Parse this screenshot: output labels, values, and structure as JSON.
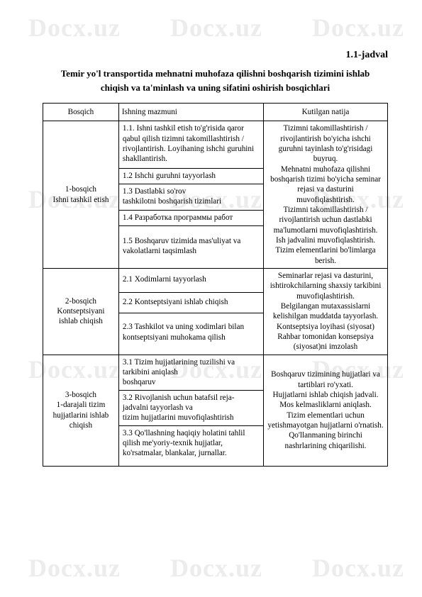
{
  "watermark": "Docx.uz",
  "subtitle": "1.1-jadval",
  "title_line1": "Temir yo'l transportida mehnatni muhofaza qilishni boshqarish tizimini ishlab",
  "title_line2": "chiqish va ta'minlash va uning sifatini oshirish bosqichlari",
  "headers": {
    "c1": "Bosqich",
    "c2": "Ishning mazmuni",
    "c3": "Kutilgan natija"
  },
  "stage1": {
    "name": "1-bosqich\nIshni tashkil etish",
    "r1": "1.1. Ishni tashkil etish to'g'risida qaror qabul qilish tizimni takomillashtirish / rivojlantirish. Loyihaning ishchi guruhini shakllantirish.",
    "r2": "1.2 Ishchi guruhni tayyorlash",
    "r3": "1.3 Dastlabki so'rov\ntashkilotni boshqarish tizimlari",
    "r4": "1.4 Разработка программы работ",
    "r5": "1.5 Boshqaruv tizimida mas'uliyat va vakolatlarni taqsimlash",
    "result": "Tizimni takomillashtirish / rivojlantirish bo'yicha ishchi guruhni tayinlash to'g'risidagi buyruq.\nMehnatni muhofaza qilishni boshqarish tizimi bo'yicha seminar rejasi va dasturini muvofiqlashtirish.\nTizimni takomillashtirish / rivojlantirish uchun dastlabki ma'lumotlarni muvofiqlashtirish.\nIsh jadvalini muvofiqlashtirish. Tizim elementlarini bo'limlarga berish."
  },
  "stage2": {
    "name": "2-bosqich\nKontseptsiyani ishlab chiqish",
    "r1": "2.1 Xodimlarni tayyorlash",
    "r2": "2.2 Kontseptsiyani ishlab chiqish",
    "r3": "2.3 Tashkilot va uning xodimlari bilan kontseptsiyani muhokama qilish",
    "result": "Seminarlar rejasi va dasturini, ishtirokchilarning shaxsiy tarkibini muvofiqlashtirish.\nBelgilangan mutaxassislarni kelishilgan muddatda tayyorlash.\nKontseptsiya loyihasi (siyosat) Rahbar tomonidan konsepsiya (siyosat)ni imzolash"
  },
  "stage3": {
    "name": "3-bosqich\n1-darajali tizim hujjatlarini ishlab chiqish",
    "r1": "3.1 Tizim hujjatlarining tuzilishi va tarkibini aniqlash\nboshqaruv",
    "r2": "3.2 Rivojlanish uchun batafsil reja-jadvalni tayyorlash va\ntizim hujjatlarini muvofiqlashtirish",
    "r3": "3.3 Qo'llashning haqiqiy holatini tahlil qilish me'yoriy-texnik hujjatlar, ko'rsatmalar, blankalar, jurnallar.",
    "result": "Boshqaruv tizimining hujjatlari va tartiblari ro'yxati.\nHujjatlarni ishlab chiqish jadvali.\nMos kelmasliklarni aniqlash.\nTizim elementlari uchun yetishmayotgan hujjatlarni o'rnatish.\nQo'llanmaning birinchi nashrlarining chiqarilishi."
  }
}
